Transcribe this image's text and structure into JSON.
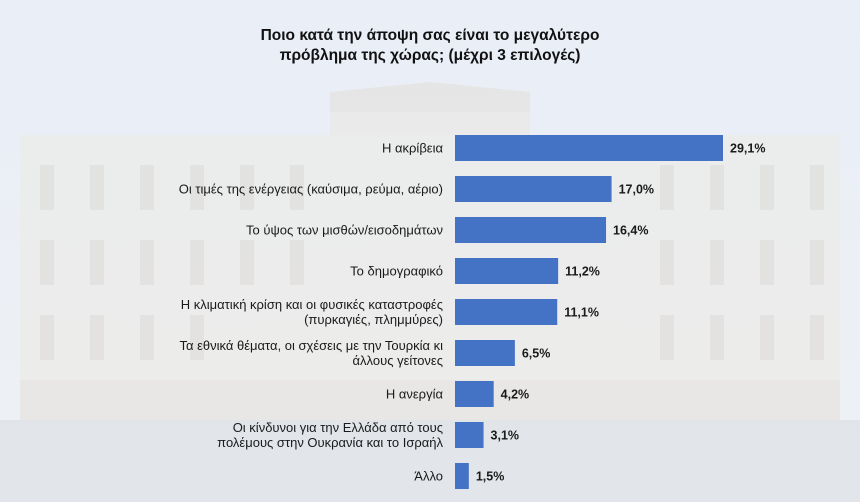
{
  "chart_data": {
    "type": "bar",
    "orientation": "horizontal",
    "title_lines": [
      "Ποιο κατά την άποψη σας είναι το μεγαλύτερο",
      "πρόβλημα της χώρας; (μέχρι 3 επιλογές)"
    ],
    "xlabel": "",
    "ylabel": "",
    "grid": false,
    "categories": [
      [
        "Η ακρίβεια"
      ],
      [
        "Οι τιμές της ενέργειας (καύσιμα, ρεύμα, αέριο)"
      ],
      [
        "Το ύψος των μισθών/εισοδημάτων"
      ],
      [
        "Το δημογραφικό"
      ],
      [
        "Η κλιματική κρίση και οι φυσικές καταστροφές",
        "(πυρκαγιές, πλημμύρες)"
      ],
      [
        "Τα εθνικά θέματα, οι σχέσεις με την Τουρκία κι",
        "άλλους γείτονες"
      ],
      [
        "Η ανεργία"
      ],
      [
        "Οι κίνδυνοι για την Ελλάδα από τους",
        "πολέμους στην Ουκρανία και το Ισραήλ"
      ],
      [
        "Άλλο"
      ]
    ],
    "values": [
      29.1,
      17.0,
      16.4,
      11.2,
      11.1,
      6.5,
      4.2,
      3.1,
      1.5
    ],
    "value_labels": [
      "29,1%",
      "17,0%",
      "16,4%",
      "11,2%",
      "11,1%",
      "6,5%",
      "4,2%",
      "3,1%",
      "1,5%"
    ],
    "bar_color": "#4472c4"
  }
}
